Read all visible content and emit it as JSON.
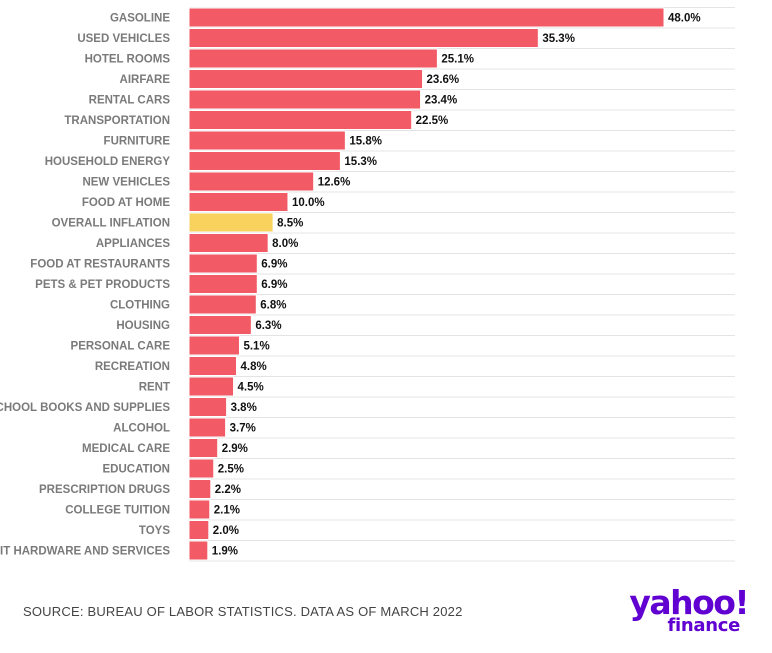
{
  "chart_data": {
    "type": "bar",
    "orientation": "horizontal",
    "categories": [
      "GASOLINE",
      "USED VEHICLES",
      "HOTEL ROOMS",
      "AIRFARE",
      "RENTAL CARS",
      "TRANSPORTATION",
      "FURNITURE",
      "HOUSEHOLD ENERGY",
      "NEW VEHICLES",
      "FOOD AT HOME",
      "OVERALL INFLATION",
      "APPLIANCES",
      "FOOD AT RESTAURANTS",
      "PETS & PET PRODUCTS",
      "CLOTHING",
      "HOUSING",
      "PERSONAL CARE",
      "RECREATION",
      "RENT",
      "SCHOOL BOOKS AND SUPPLIES",
      "ALCOHOL",
      "MEDICAL CARE",
      "EDUCATION",
      "PRESCRIPTION DRUGS",
      "COLLEGE TUITION",
      "TOYS",
      "IT HARDWARE AND SERVICES"
    ],
    "values": [
      48.0,
      35.3,
      25.1,
      23.6,
      23.4,
      22.5,
      15.8,
      15.3,
      12.6,
      10.0,
      8.5,
      8.0,
      6.9,
      6.9,
      6.8,
      6.3,
      5.1,
      4.8,
      4.5,
      3.8,
      3.7,
      2.9,
      2.5,
      2.2,
      2.1,
      2.0,
      1.9
    ],
    "value_labels": [
      "48.0%",
      "35.3%",
      "25.1%",
      "23.6%",
      "23.4%",
      "22.5%",
      "15.8%",
      "15.3%",
      "12.6%",
      "10.0%",
      "8.5%",
      "8.0%",
      "6.9%",
      "6.9%",
      "6.8%",
      "6.3%",
      "5.1%",
      "4.8%",
      "4.5%",
      "3.8%",
      "3.7%",
      "2.9%",
      "2.5%",
      "2.2%",
      "2.1%",
      "2.0%",
      "1.9%"
    ],
    "highlight_category": "OVERALL INFLATION",
    "xlim": [
      0,
      48.0
    ],
    "grid": true,
    "colors": {
      "bar": "#f25a65",
      "highlight": "#f8d25c",
      "grid": "#e4e4e4",
      "bar_edge": "#ffffff"
    }
  },
  "footer": {
    "source": "SOURCE: BUREAU OF LABOR STATISTICS. DATA AS OF MARCH 2022"
  },
  "logo": {
    "main": "yahoo!",
    "sub": "finance",
    "color": "#6001d2"
  }
}
